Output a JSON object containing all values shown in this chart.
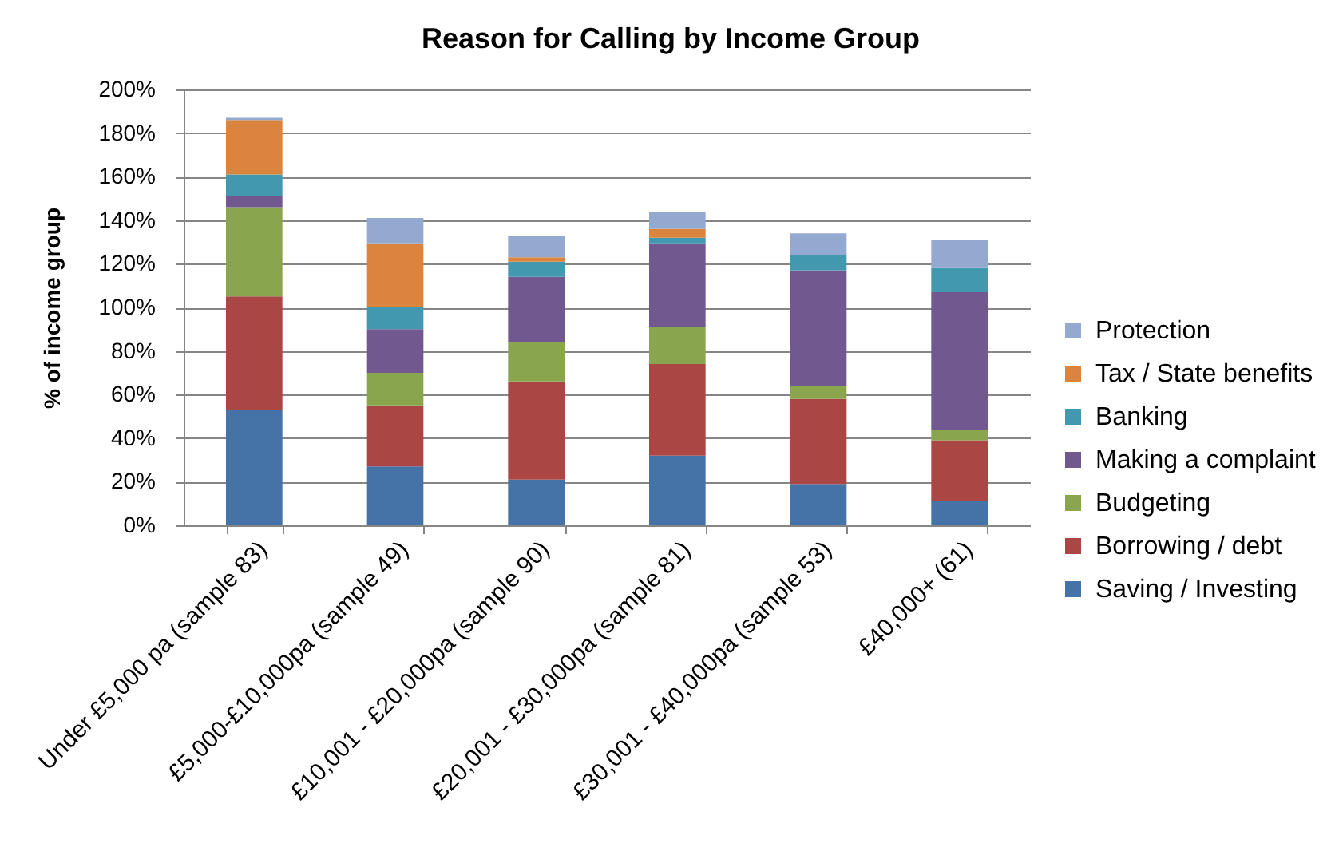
{
  "chart_data": {
    "type": "bar",
    "title": "Reason for Calling by Income Group",
    "ylabel": "% of income group",
    "categories": [
      "Under £5,000 pa (sample 83)",
      "£5,000-£10,000pa (sample 49)",
      "£10,001 - £20,000pa (sample 90)",
      "£20,001 - £30,000pa (sample 81)",
      "£30,001 - £40,000pa (sample 53)",
      "£40,000+ (61)"
    ],
    "stacked": true,
    "series": [
      {
        "name": "Saving / Investing",
        "color": "#4572a7",
        "values": [
          53,
          27,
          21,
          32,
          19,
          11
        ]
      },
      {
        "name": "Borrowing / debt",
        "color": "#aa4643",
        "values": [
          52,
          28,
          45,
          42,
          39,
          28
        ]
      },
      {
        "name": "Budgeting",
        "color": "#89a54e",
        "values": [
          41,
          15,
          18,
          17,
          6,
          5
        ]
      },
      {
        "name": "Making a complaint",
        "color": "#71588f",
        "values": [
          5,
          20,
          30,
          38,
          53,
          63
        ]
      },
      {
        "name": "Banking",
        "color": "#4198af",
        "values": [
          10,
          10,
          7,
          3,
          7,
          11
        ]
      },
      {
        "name": "Tax / State benefits",
        "color": "#db843d",
        "values": [
          25,
          29,
          2,
          4,
          null,
          null
        ]
      },
      {
        "name": "Protection",
        "color": "#93a9cf",
        "values": [
          1,
          12,
          10,
          8,
          10,
          13
        ]
      }
    ],
    "ylim": [
      0,
      200
    ],
    "yticks": [
      {
        "value": 0,
        "label": "0%"
      },
      {
        "value": 20,
        "label": "20%"
      },
      {
        "value": 40,
        "label": "40%"
      },
      {
        "value": 60,
        "label": "60%"
      },
      {
        "value": 80,
        "label": "80%"
      },
      {
        "value": 100,
        "label": "100%"
      },
      {
        "value": 120,
        "label": "120%"
      },
      {
        "value": 140,
        "label": "140%"
      },
      {
        "value": 160,
        "label": "160%"
      },
      {
        "value": 180,
        "label": "180%"
      },
      {
        "value": 200,
        "label": "200%"
      }
    ],
    "grid": "y",
    "legend": "right"
  }
}
